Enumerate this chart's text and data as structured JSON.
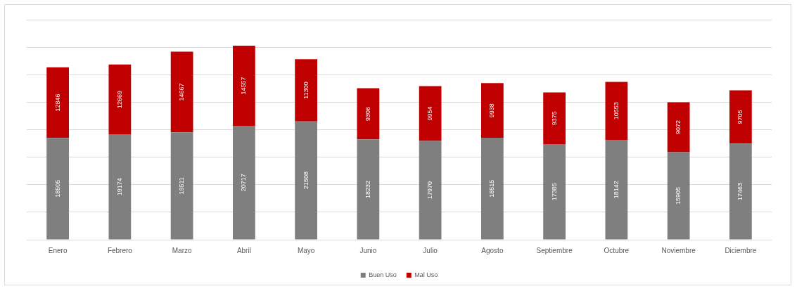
{
  "chart_data": {
    "type": "bar",
    "categories": [
      "Enero",
      "Febrero",
      "Marzo",
      "Abril",
      "Mayo",
      "Junio",
      "Julio",
      "Agosto",
      "Septiembre",
      "Octubre",
      "Noviembre",
      "Diciembre"
    ],
    "series": [
      {
        "name": "Buen Uso",
        "color": "#7f7f7f",
        "values": [
          18505,
          19174,
          19511,
          20717,
          21508,
          18232,
          17970,
          18515,
          17385,
          18142,
          15905,
          17463
        ]
      },
      {
        "name": "Mal Uso",
        "color": "#c00000",
        "values": [
          12846,
          12669,
          14667,
          14557,
          11300,
          9306,
          9954,
          9938,
          9375,
          10553,
          9072,
          9705
        ]
      }
    ],
    "stacked": true,
    "ylim": [
      0,
      40000
    ],
    "yticks": [
      {
        "value": 0,
        "label": null
      },
      {
        "value": 5000,
        "label": null
      },
      {
        "value": 10000,
        "label": null
      },
      {
        "value": 15000,
        "label": null
      },
      {
        "value": 20000,
        "label": null
      },
      {
        "value": 25000,
        "label": null
      },
      {
        "value": 30000,
        "label": null
      },
      {
        "value": 35000,
        "label": null
      },
      {
        "value": 40000,
        "label": null
      }
    ],
    "grid": "y",
    "legend": "bottom",
    "tick_labels": "x",
    "data_labels": true
  }
}
